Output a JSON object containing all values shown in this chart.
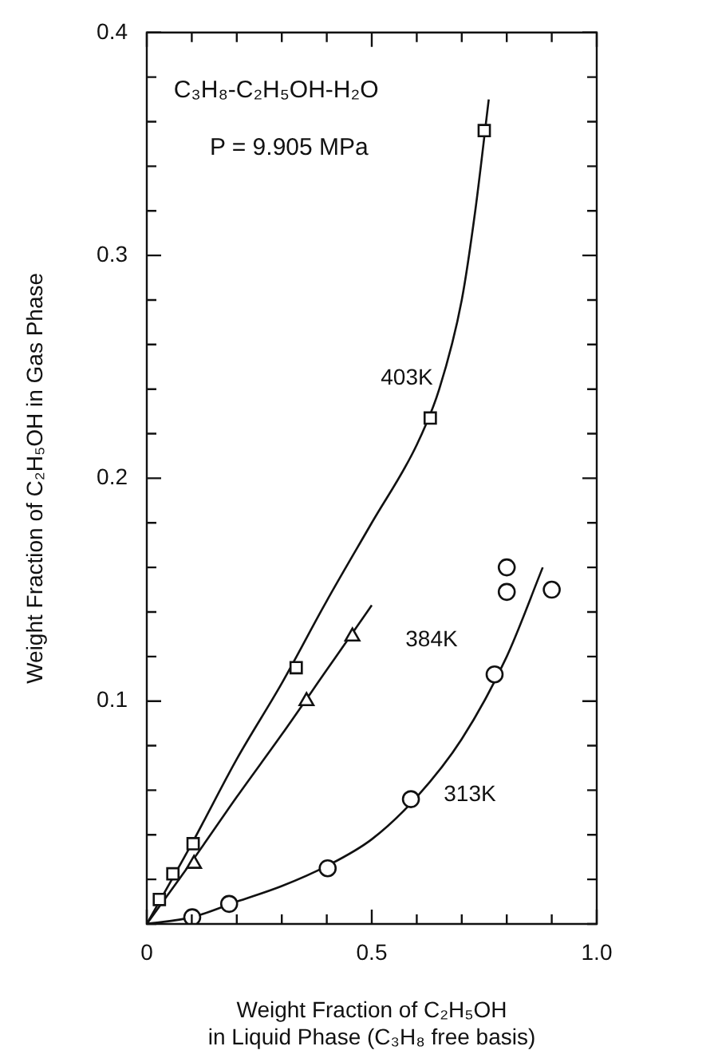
{
  "chart_data": {
    "type": "scatter",
    "xlabel": "Weight Fraction of C₂H₅OH\nin Liquid Phase (C₃H₈ free basis)",
    "ylabel": "Weight Fraction of C₂H₅OH in Gas Phase",
    "xlim": [
      0,
      1
    ],
    "ylim": [
      0,
      0.4
    ],
    "xticks": [
      0,
      {
        "value": 0.1,
        "label": null
      },
      {
        "value": 0.2,
        "label": null
      },
      {
        "value": 0.3,
        "label": null
      },
      {
        "value": 0.4,
        "label": null
      },
      0.5,
      {
        "value": 0.6,
        "label": null
      },
      {
        "value": 0.7,
        "label": null
      },
      {
        "value": 0.8,
        "label": null
      },
      {
        "value": 0.9,
        "label": null
      },
      {
        "value": 1,
        "label": "1.0"
      }
    ],
    "yticks": [
      {
        "value": 0,
        "label": null
      },
      {
        "value": 0.02,
        "label": null
      },
      {
        "value": 0.04,
        "label": null
      },
      {
        "value": 0.06,
        "label": null
      },
      {
        "value": 0.08,
        "label": null
      },
      0.1,
      {
        "value": 0.12,
        "label": null
      },
      {
        "value": 0.14,
        "label": null
      },
      {
        "value": 0.16,
        "label": null
      },
      {
        "value": 0.18,
        "label": null
      },
      0.2,
      {
        "value": 0.22,
        "label": null
      },
      {
        "value": 0.24,
        "label": null
      },
      {
        "value": 0.26,
        "label": null
      },
      {
        "value": 0.28,
        "label": null
      },
      0.3,
      {
        "value": 0.32,
        "label": null
      },
      {
        "value": 0.34,
        "label": null
      },
      {
        "value": 0.36,
        "label": null
      },
      {
        "value": 0.38,
        "label": null
      },
      0.4
    ],
    "grid": false,
    "legend": false,
    "series": [
      {
        "marker": "square",
        "color": "#111111",
        "x": [
          0.028,
          0.058,
          0.103,
          0.332,
          0.63,
          0.75
        ],
        "values": [
          0.011,
          0.0225,
          0.036,
          0.115,
          0.227,
          0.356
        ]
      },
      {
        "marker": "triangle",
        "color": "#111111",
        "x": [
          0.105,
          0.355,
          0.457
        ],
        "values": [
          0.027,
          0.1,
          0.129
        ]
      },
      {
        "marker": "circle",
        "color": "#111111",
        "x": [
          0.101,
          0.183,
          0.402,
          0.587,
          0.773,
          0.8,
          0.8,
          0.9
        ],
        "values": [
          0.003,
          0.009,
          0.025,
          0.056,
          0.112,
          0.149,
          0.16,
          0.15
        ]
      },
      {
        "type": "line",
        "marker": "none",
        "line_style": "solid",
        "color": "#111111",
        "x": [
          0,
          0.1,
          0.2,
          0.3,
          0.4,
          0.5,
          0.6,
          0.65,
          0.7,
          0.73,
          0.76
        ],
        "values": [
          0,
          0.036,
          0.074,
          0.108,
          0.145,
          0.18,
          0.215,
          0.24,
          0.28,
          0.32,
          0.37
        ]
      },
      {
        "type": "line",
        "marker": "none",
        "line_style": "solid",
        "color": "#111111",
        "x": [
          0,
          0.1,
          0.2,
          0.3,
          0.4,
          0.5
        ],
        "values": [
          0,
          0.028,
          0.057,
          0.085,
          0.114,
          0.143
        ]
      },
      {
        "type": "line",
        "marker": "none",
        "line_style": "solid",
        "color": "#111111",
        "x": [
          0,
          0.1,
          0.2,
          0.3,
          0.4,
          0.5,
          0.6,
          0.7,
          0.8,
          0.88
        ],
        "values": [
          0,
          0.003,
          0.01,
          0.017,
          0.026,
          0.038,
          0.057,
          0.083,
          0.12,
          0.16
        ]
      }
    ],
    "annotations": [
      "C₃H₈-C₂H₅OH-H₂O",
      "P = 9.905 MPa",
      "403K",
      "384K",
      "313K"
    ]
  }
}
